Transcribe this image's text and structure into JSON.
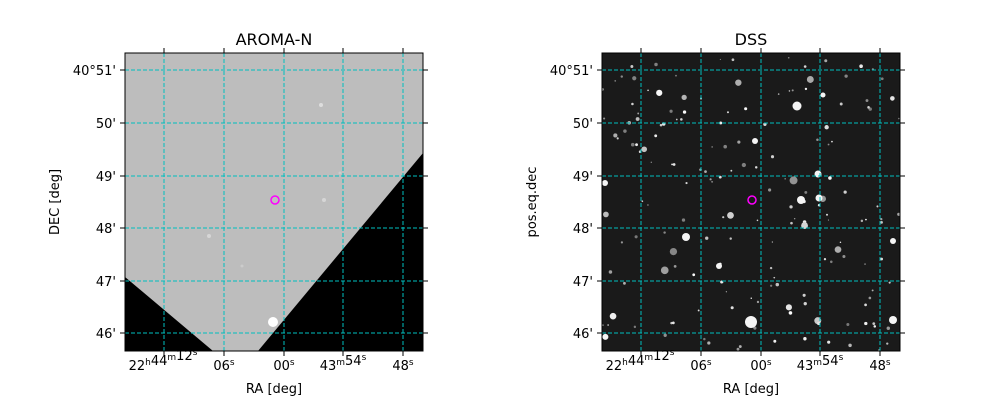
{
  "chart_data": [
    {
      "type": "heatmap",
      "title": "AROMA-N",
      "xlabel": "RA [deg]",
      "ylabel": "DEC [deg]",
      "x_ticks": [
        "22h44m12s",
        "06s",
        "00s",
        "43m54s",
        "48s"
      ],
      "y_ticks": [
        "40°51'",
        "50'",
        "49'",
        "48'",
        "47'",
        "46'"
      ],
      "grid": true,
      "grid_color": "#00bfbf",
      "colormap": "gray",
      "target_marker": {
        "ra": "22h44m00.8s",
        "dec": "40°48.5'",
        "color": "#ff00ff"
      }
    },
    {
      "type": "heatmap",
      "title": "DSS",
      "xlabel": "RA [deg]",
      "ylabel": "pos.eq.dec",
      "x_ticks": [
        "22h44m12s",
        "06s",
        "00s",
        "43m54s",
        "48s"
      ],
      "y_ticks": [
        "40°51'",
        "50'",
        "49'",
        "48'",
        "47'",
        "46'"
      ],
      "grid": true,
      "grid_color": "#00bfbf",
      "colormap": "gray",
      "target_marker": {
        "ra": "22h44m00.8s",
        "dec": "40°48.5'",
        "color": "#ff00ff"
      }
    }
  ]
}
